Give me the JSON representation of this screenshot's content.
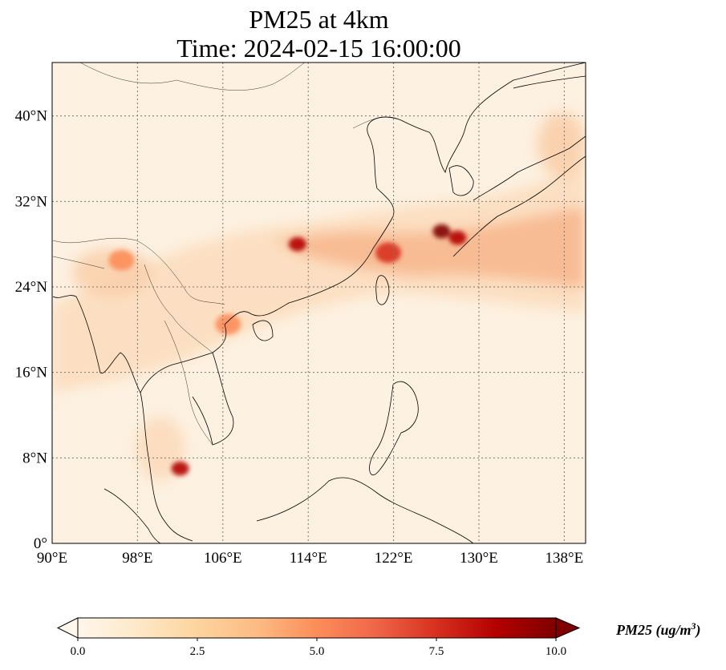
{
  "map": {
    "title_line1": "PM25 at 4km",
    "title_line2": "Time: 2024-02-15 16:00:00",
    "extent": {
      "lon": [
        90,
        140
      ],
      "lat": [
        0,
        45
      ]
    },
    "lon_ticks": [
      {
        "value": 90,
        "label": "90°E"
      },
      {
        "value": 98,
        "label": "98°E"
      },
      {
        "value": 106,
        "label": "106°E"
      },
      {
        "value": 114,
        "label": "114°E"
      },
      {
        "value": 122,
        "label": "122°E"
      },
      {
        "value": 130,
        "label": "130°E"
      },
      {
        "value": 138,
        "label": "138°E"
      }
    ],
    "lat_ticks": [
      {
        "value": 0,
        "label": "0°"
      },
      {
        "value": 8,
        "label": "8°N"
      },
      {
        "value": 16,
        "label": "16°N"
      },
      {
        "value": 24,
        "label": "24°N"
      },
      {
        "value": 32,
        "label": "32°N"
      },
      {
        "value": 40,
        "label": "40°N"
      }
    ],
    "gridlines": true,
    "colormap": "OrRd"
  },
  "colorbar": {
    "min": 0,
    "max": 10,
    "extend": "both",
    "ticks": [
      {
        "value": 0,
        "label": "0.0"
      },
      {
        "value": 2.5,
        "label": "2.5"
      },
      {
        "value": 5,
        "label": "5.0"
      },
      {
        "value": 7.5,
        "label": "7.5"
      },
      {
        "value": 10,
        "label": "10.0"
      }
    ],
    "label_text": "PM25 (ug/m",
    "label_sup": "3",
    "label_close": ")",
    "colors": [
      "#fff7ec",
      "#fee8c8",
      "#fdd49e",
      "#fdbb84",
      "#fc8d59",
      "#ef6548",
      "#d7301f",
      "#b30000",
      "#7f0000"
    ]
  },
  "plumes": [
    {
      "lon": 113,
      "lat": 28.0,
      "value": 9.0
    },
    {
      "lon": 121.5,
      "lat": 27.2,
      "value": 7.5
    },
    {
      "lon": 126.5,
      "lat": 29.2,
      "value": 9.5
    },
    {
      "lon": 128.0,
      "lat": 28.6,
      "value": 9.0
    },
    {
      "lon": 102.0,
      "lat": 7.0,
      "value": 9.0
    },
    {
      "lon": 96.5,
      "lat": 26.5,
      "value": 5.0
    },
    {
      "lon": 106.5,
      "lat": 20.5,
      "value": 4.5
    }
  ]
}
